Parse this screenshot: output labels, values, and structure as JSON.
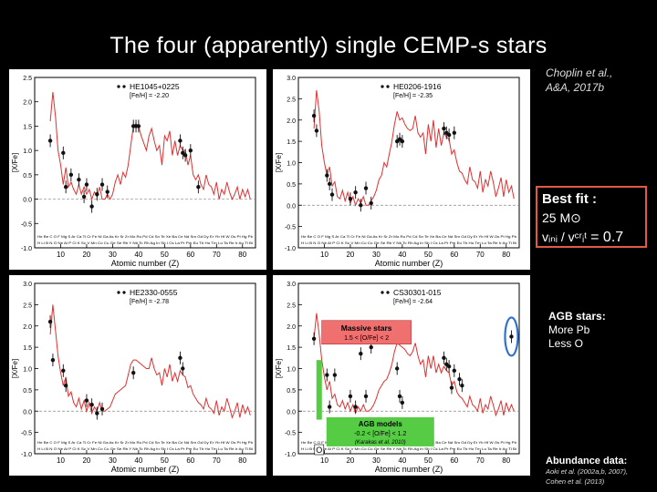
{
  "slide": {
    "title": "The four (apparently) single CEMP-s stars",
    "citation_line1": "Choplin et al.,",
    "citation_line2": "A&A, 2017b",
    "fit": {
      "title": "Best fit :",
      "mass": "25 M⊙",
      "velocity_label": "vᵢₙᵢ / vᶜʳᵢᵗ",
      "velocity_value": "= 0.7"
    },
    "agb": {
      "title": "AGB stars:",
      "line1": "More Pb",
      "line2": "Less O"
    },
    "abundance": {
      "title": "Abundance data:",
      "ref1": "Aoki et al. (2002a,b, 2007),",
      "ref2": "Cohen et al. (2013)"
    }
  },
  "colors": {
    "model": "#e03030",
    "points": "#111111",
    "agb_circle": "#3070d0",
    "massive_box": "#f07070",
    "agb_box": "#55cc44",
    "fit_border": "#e35a44"
  },
  "chart_data": [
    {
      "type": "line",
      "star": "HE1045+0225",
      "feh_label": "[Fe/H] = -2.20",
      "xlabel": "Atomic number (Z)",
      "ylabel": "[X/Fe]",
      "xlim": [
        0,
        85
      ],
      "ylim": [
        -1.0,
        2.5
      ],
      "xticks": [
        10,
        20,
        30,
        40,
        50,
        60,
        70,
        80
      ],
      "yticks": [
        -1.0,
        -0.5,
        0.0,
        0.5,
        1.0,
        1.5,
        2.0,
        2.5
      ],
      "element_row1": "He Be C O F Mg S Ar Ca Ti Cr Fe Ni Ga As Kr Sr Zr Mo Ru Pd Cd Sn Te Xe Ba Ce Nd Sm Gd Dy Er Yb Hf W Os Pt Hg Pb",
      "element_row2": "H Li B N O Ne Al P Cl K Sc V Mn Co Cu Ge Se Rb Y Nb Tc Rh Ag In Sb I Cs La Pr Pm Eu Tb Ho Tm Lu Ta Re Ir Au Tl Bi",
      "model": {
        "x": [
          6,
          7,
          8,
          9,
          10,
          11,
          12,
          13,
          14,
          15,
          16,
          17,
          18,
          19,
          20,
          21,
          22,
          23,
          24,
          25,
          26,
          27,
          28,
          29,
          30,
          31,
          32,
          33,
          34,
          35,
          36,
          37,
          38,
          39,
          40,
          41,
          42,
          43,
          44,
          45,
          46,
          47,
          48,
          49,
          50,
          51,
          52,
          53,
          54,
          55,
          56,
          57,
          58,
          59,
          60,
          61,
          62,
          63,
          64,
          65,
          66,
          67,
          68,
          69,
          70,
          71,
          72,
          73,
          74,
          75,
          76,
          77,
          78,
          79,
          80,
          81,
          82,
          83
        ],
        "y": [
          1.6,
          2.2,
          1.7,
          1.0,
          0.7,
          0.3,
          0.65,
          0.25,
          0.35,
          0.2,
          0.1,
          0.3,
          0.1,
          0.25,
          0.1,
          0.2,
          0.0,
          0.15,
          0.05,
          0.25,
          0.0,
          0.0,
          0.1,
          0.0,
          0.1,
          0.35,
          0.5,
          0.3,
          0.55,
          0.45,
          0.7,
          1.1,
          1.5,
          1.55,
          1.5,
          1.3,
          1.15,
          1.0,
          1.3,
          1.45,
          1.2,
          1.0,
          1.1,
          0.7,
          1.3,
          1.2,
          1.4,
          0.9,
          1.2,
          0.9,
          1.1,
          1.0,
          1.0,
          0.7,
          0.9,
          0.5,
          0.4,
          0.5,
          0.3,
          0.2,
          0.5,
          0.3,
          0.25,
          0.1,
          0.35,
          0.0,
          0.2,
          0.1,
          0.35,
          0.15,
          0.0,
          0.1,
          0.25,
          0.0,
          0.2,
          0.05,
          0.2,
          0.0
        ]
      },
      "observed": {
        "x": [
          6,
          11,
          12,
          14,
          17,
          19,
          20,
          22,
          24,
          26,
          28,
          38,
          39,
          40,
          56,
          57,
          58,
          60,
          63
        ],
        "y": [
          1.2,
          0.95,
          0.25,
          0.5,
          0.4,
          0.05,
          0.3,
          -0.15,
          0.1,
          0.3,
          0.15,
          1.5,
          1.5,
          1.5,
          1.2,
          0.95,
          0.9,
          1.0,
          0.25
        ]
      }
    },
    {
      "type": "line",
      "star": "HE0206-1916",
      "feh_label": "[Fe/H] = -2.35",
      "xlabel": "Atomic number (Z)",
      "ylabel": "[X/Fe]",
      "xlim": [
        0,
        85
      ],
      "ylim": [
        -1.0,
        3.0
      ],
      "xticks": [
        10,
        20,
        30,
        40,
        50,
        60,
        70,
        80
      ],
      "yticks": [
        -1.0,
        -0.5,
        0.0,
        0.5,
        1.0,
        1.5,
        2.0,
        2.5,
        3.0
      ],
      "element_row1": "He Be C O F Mg S Ar Ca Ti Cr Fe Ni Ga As Kr Sr Zr Mo Ru Pd Cd Sn Te Xe Ba Ce Nd Sm Gd Dy Er Yb Hf W Os Pt Hg Pb",
      "element_row2": "H Li B N O Ne Al P Cl K Sc V Mn Co Cu Ge Se Rb Y Nb Tc Rh Ag In Sb I Cs La Pr Pm Eu Tb Ho Tm Lu Ta Re Ir Au Tl Bi",
      "model": {
        "x": [
          6,
          7,
          8,
          9,
          10,
          11,
          12,
          13,
          14,
          15,
          16,
          17,
          18,
          19,
          20,
          21,
          22,
          23,
          24,
          25,
          26,
          27,
          28,
          29,
          30,
          31,
          32,
          33,
          34,
          35,
          36,
          37,
          38,
          39,
          40,
          41,
          42,
          43,
          44,
          45,
          46,
          47,
          48,
          49,
          50,
          51,
          52,
          53,
          54,
          55,
          56,
          57,
          58,
          59,
          60,
          61,
          62,
          63,
          64,
          65,
          66,
          67,
          68,
          69,
          70,
          71,
          72,
          73,
          74,
          75,
          76,
          77,
          78,
          79,
          80,
          81,
          82,
          83
        ],
        "y": [
          1.8,
          2.7,
          2.2,
          1.4,
          1.0,
          0.7,
          0.9,
          0.45,
          0.55,
          0.2,
          0.15,
          0.35,
          0.1,
          0.3,
          0.05,
          0.2,
          0.0,
          0.15,
          0.05,
          0.2,
          0.0,
          0.0,
          0.1,
          0.2,
          0.35,
          0.6,
          0.7,
          1.0,
          0.9,
          1.2,
          1.5,
          1.9,
          2.2,
          2.0,
          2.05,
          1.9,
          1.8,
          1.75,
          1.8,
          2.1,
          1.7,
          1.6,
          1.7,
          1.2,
          1.9,
          1.5,
          2.0,
          1.35,
          1.8,
          1.4,
          1.7,
          1.6,
          1.55,
          1.2,
          1.3,
          1.0,
          0.8,
          0.75,
          0.6,
          0.5,
          0.9,
          0.6,
          0.55,
          0.4,
          0.8,
          0.3,
          0.6,
          0.45,
          0.8,
          0.55,
          0.2,
          0.4,
          0.65,
          0.2,
          0.6,
          0.3,
          0.45,
          0.15
        ]
      },
      "observed": {
        "x": [
          6,
          7,
          11,
          12,
          13,
          20,
          22,
          24,
          26,
          28,
          38,
          39,
          40,
          56,
          57,
          58,
          60
        ],
        "y": [
          2.1,
          1.75,
          0.7,
          0.5,
          0.25,
          0.15,
          0.3,
          0.0,
          0.4,
          0.05,
          1.5,
          1.55,
          1.5,
          1.8,
          1.7,
          1.65,
          1.7
        ]
      }
    },
    {
      "type": "line",
      "star": "HE2330-0555",
      "feh_label": "[Fe/H] = -2.78",
      "xlabel": "Atomic number (Z)",
      "ylabel": "[X/Fe]",
      "xlim": [
        0,
        85
      ],
      "ylim": [
        -1.0,
        3.0
      ],
      "xticks": [
        10,
        20,
        30,
        40,
        50,
        60,
        70,
        80
      ],
      "yticks": [
        -1.0,
        -0.5,
        0.0,
        0.5,
        1.0,
        1.5,
        2.0,
        2.5,
        3.0
      ],
      "element_row1": "He Be C O F Mg S Ar Ca Ti Cr Fe Ni Ga As Kr Sr Zr Mo Ru Pd Cd Sn Te Xe Ba Ce Nd Sm Gd Dy Er Yb Hf W Os Pt Hg Pb",
      "element_row2": "H Li B N O Ne Al P Cl K Sc V Mn Co Cu Ge Se Rb Y Nb Tc Rh Ag In Sb I Cs La Pr Pm Eu Tb Ho Tm Lu Ta Re Ir Au Tl Bi",
      "model": {
        "x": [
          6,
          7,
          8,
          9,
          10,
          11,
          12,
          13,
          14,
          15,
          16,
          17,
          18,
          19,
          20,
          21,
          22,
          23,
          24,
          25,
          26,
          27,
          28,
          29,
          30,
          31,
          32,
          33,
          34,
          35,
          36,
          37,
          38,
          39,
          40,
          41,
          42,
          43,
          44,
          45,
          46,
          47,
          48,
          49,
          50,
          51,
          52,
          53,
          54,
          55,
          56,
          57,
          58,
          59,
          60,
          61,
          62,
          63,
          64,
          65,
          66,
          67,
          68,
          69,
          70,
          71,
          72,
          73,
          74,
          75,
          76,
          77,
          78,
          79,
          80,
          81,
          82,
          83
        ],
        "y": [
          1.8,
          2.5,
          1.9,
          1.3,
          0.9,
          0.6,
          0.8,
          0.35,
          0.45,
          0.2,
          0.1,
          0.3,
          0.05,
          0.25,
          0.0,
          0.2,
          -0.05,
          0.1,
          0.0,
          0.2,
          0.0,
          0.0,
          0.05,
          0.1,
          0.25,
          0.4,
          0.45,
          0.5,
          0.55,
          0.6,
          0.85,
          1.1,
          1.2,
          1.2,
          1.15,
          1.1,
          1.05,
          1.0,
          1.0,
          1.25,
          1.0,
          0.85,
          0.9,
          0.6,
          1.0,
          0.8,
          1.1,
          0.7,
          0.9,
          0.7,
          0.95,
          0.85,
          0.8,
          0.55,
          0.6,
          0.4,
          0.3,
          0.2,
          0.15,
          0.05,
          0.3,
          0.1,
          0.05,
          -0.05,
          0.25,
          -0.1,
          0.1,
          0.0,
          0.3,
          0.1,
          -0.15,
          0.0,
          0.2,
          -0.15,
          0.15,
          -0.05,
          0.1,
          -0.1
        ]
      },
      "observed": {
        "x": [
          6,
          7,
          11,
          12,
          20,
          22,
          24,
          26,
          38,
          56,
          57
        ],
        "y": [
          2.1,
          1.2,
          0.95,
          0.6,
          0.25,
          0.15,
          -0.05,
          0.05,
          0.9,
          1.25,
          1.0
        ]
      }
    },
    {
      "type": "line",
      "star": "CS30301-015",
      "feh_label": "[Fe/H] = -2.64",
      "xlabel": "Atomic number (Z)",
      "ylabel": "[X/Fe]",
      "xlim": [
        0,
        85
      ],
      "ylim": [
        -1.0,
        3.0
      ],
      "xticks": [
        10,
        20,
        30,
        40,
        50,
        60,
        70,
        80
      ],
      "yticks": [
        -1.0,
        -0.5,
        0.0,
        0.5,
        1.0,
        1.5,
        2.0,
        2.5,
        3.0
      ],
      "element_row1": "He Be C O F Mg S Ar Ca Ti Cr Fe Ni Ga As Kr Sr Zr Mo Ru Pd Cd Sn Te Xe Ba Ce Nd Sm Gd Dy Er Yb Hf W Os Pt Hg Pb",
      "element_row2": "H Li B N O Ne Al P Cl K Sc V Mn Co Cu Ge Se Rb Y Nb Tc Rh Ag In Sb I Cs La Pr Pm Eu Tb Ho Tm Lu Ta Re Ir Au Tl Bi",
      "model": {
        "x": [
          6,
          7,
          8,
          9,
          10,
          11,
          12,
          13,
          14,
          15,
          16,
          17,
          18,
          19,
          20,
          21,
          22,
          23,
          24,
          25,
          26,
          27,
          28,
          29,
          30,
          31,
          32,
          33,
          34,
          35,
          36,
          37,
          38,
          39,
          40,
          41,
          42,
          43,
          44,
          45,
          46,
          47,
          48,
          49,
          50,
          51,
          52,
          53,
          54,
          55,
          56,
          57,
          58,
          59,
          60,
          61,
          62,
          63,
          64,
          65,
          66,
          67,
          68,
          69,
          70,
          71,
          72,
          73,
          74,
          75,
          76,
          77,
          78,
          79,
          80,
          81,
          82,
          83
        ],
        "y": [
          1.7,
          2.3,
          1.8,
          1.2,
          0.8,
          0.5,
          0.7,
          0.3,
          0.4,
          0.15,
          0.1,
          0.25,
          0.05,
          0.2,
          0.0,
          0.15,
          -0.05,
          0.1,
          0.0,
          0.15,
          0.0,
          0.0,
          0.05,
          0.15,
          0.3,
          0.5,
          0.6,
          0.7,
          0.75,
          0.9,
          1.1,
          1.4,
          1.6,
          1.55,
          1.5,
          1.45,
          1.35,
          1.3,
          1.4,
          1.6,
          1.3,
          1.1,
          1.2,
          0.8,
          1.3,
          1.0,
          1.3,
          0.9,
          1.1,
          0.9,
          1.05,
          0.95,
          0.9,
          0.6,
          0.7,
          0.45,
          0.35,
          0.3,
          0.2,
          0.1,
          0.35,
          0.15,
          0.1,
          0.0,
          0.3,
          -0.05,
          0.15,
          0.05,
          0.35,
          0.15,
          -0.1,
          0.05,
          0.25,
          -0.1,
          0.2,
          0.0,
          0.15,
          0.0
        ]
      },
      "observed": {
        "x": [
          6,
          8,
          11,
          12,
          14,
          20,
          22,
          24,
          26,
          28,
          38,
          39,
          40,
          56,
          57,
          58,
          59,
          60,
          62,
          63,
          82
        ],
        "y": [
          1.7,
          0.25,
          0.85,
          0.1,
          0.85,
          0.35,
          0.1,
          1.35,
          0.35,
          1.5,
          1.0,
          0.35,
          0.2,
          1.25,
          1.1,
          1.05,
          0.55,
          0.95,
          0.75,
          0.6,
          1.75
        ]
      }
    }
  ],
  "annotations": {
    "massive_title": "Massive stars",
    "massive_range": "1.5 < [O/Fe] < 2",
    "agb_title": "AGB models",
    "agb_range": "-0.2 < [O/Fe] < 1.2",
    "agb_ref": "(Karakas et al. 2010)",
    "o_label": "O"
  }
}
